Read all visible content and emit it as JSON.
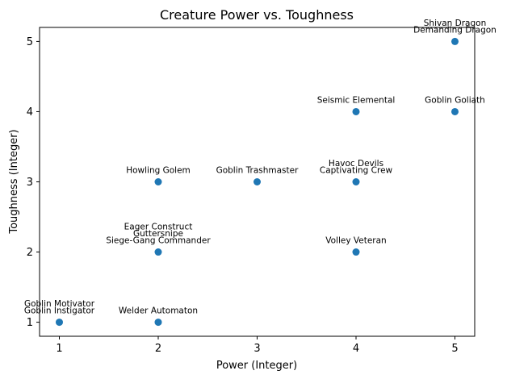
{
  "chart_data": {
    "type": "scatter",
    "title": "Creature Power vs. Toughness",
    "xlabel": "Power (Integer)",
    "ylabel": "Toughness (Integer)",
    "xlim": [
      0.8,
      5.2
    ],
    "ylim": [
      0.8,
      5.2
    ],
    "xticks": [
      1,
      2,
      3,
      4,
      5
    ],
    "yticks": [
      1,
      2,
      3,
      4,
      5
    ],
    "grid": false,
    "marker_color": "#1f77b4",
    "points": [
      {
        "x": 1,
        "y": 1,
        "labels": [
          "Goblin Motivator",
          "Goblin Instigator"
        ]
      },
      {
        "x": 2,
        "y": 1,
        "labels": [
          "Welder Automaton"
        ]
      },
      {
        "x": 2,
        "y": 2,
        "labels": [
          "Eager Construct",
          "Guttersnipe",
          "Siege-Gang Commander"
        ]
      },
      {
        "x": 2,
        "y": 3,
        "labels": [
          "Howling Golem"
        ]
      },
      {
        "x": 3,
        "y": 3,
        "labels": [
          "Goblin Trashmaster"
        ]
      },
      {
        "x": 4,
        "y": 2,
        "labels": [
          "Volley Veteran"
        ]
      },
      {
        "x": 4,
        "y": 3,
        "labels": [
          "Havoc Devils",
          "Captivating Crew"
        ]
      },
      {
        "x": 4,
        "y": 4,
        "labels": [
          "Seismic Elemental"
        ]
      },
      {
        "x": 5,
        "y": 4,
        "labels": [
          "Goblin Goliath"
        ]
      },
      {
        "x": 5,
        "y": 5,
        "labels": [
          "Shivan Dragon",
          "Demanding Dragon"
        ]
      }
    ]
  }
}
